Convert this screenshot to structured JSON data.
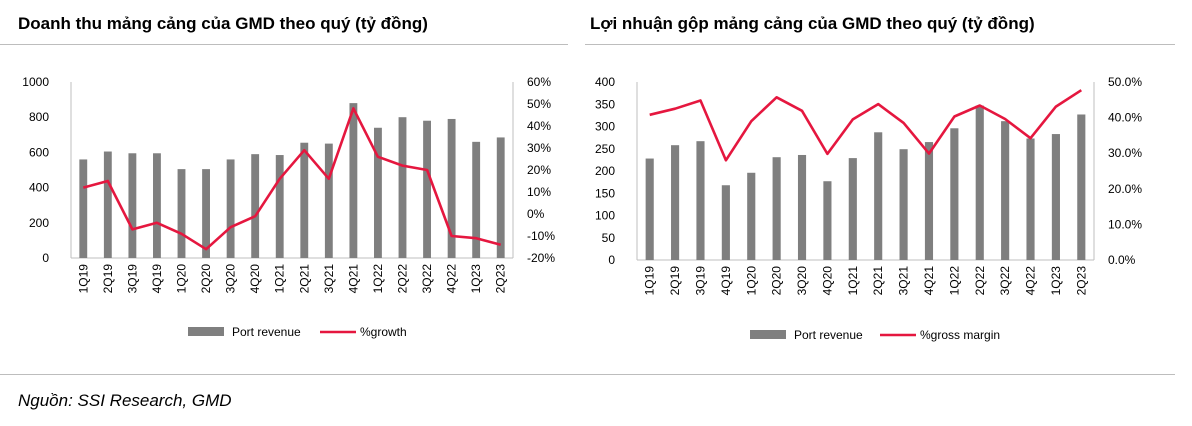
{
  "colors": {
    "bar": "#7f7f7f",
    "line": "#e5173f",
    "axis": "#bfbfbf"
  },
  "source": "Nguồn: SSI Research, GMD",
  "chart_data": [
    {
      "type": "bar",
      "title": "Doanh thu mảng cảng của GMD theo quý (tỷ đồng)",
      "categories": [
        "1Q19",
        "2Q19",
        "3Q19",
        "4Q19",
        "1Q20",
        "2Q20",
        "3Q20",
        "4Q20",
        "1Q21",
        "2Q21",
        "3Q21",
        "4Q21",
        "1Q22",
        "2Q22",
        "3Q22",
        "4Q22",
        "1Q23",
        "2Q23"
      ],
      "series": [
        {
          "name": "Port revenue",
          "type": "bar",
          "axis": "left",
          "values": [
            560,
            605,
            595,
            595,
            505,
            505,
            560,
            590,
            585,
            655,
            650,
            880,
            740,
            800,
            780,
            790,
            660,
            685
          ]
        },
        {
          "name": "%growth",
          "type": "line",
          "axis": "right",
          "values": [
            12,
            15,
            -7,
            -4,
            -9,
            -16,
            -6,
            -1,
            16,
            29,
            16,
            48,
            26,
            22,
            20,
            -10,
            -11,
            -14
          ]
        }
      ],
      "y_left": {
        "min": 0,
        "max": 1000,
        "step": 200
      },
      "y_right": {
        "min": -20,
        "max": 60,
        "step": 10,
        "format": "percent0"
      },
      "legend": "bottom"
    },
    {
      "type": "bar",
      "title": "Lợi nhuận gộp mảng cảng của GMD theo quý (tỷ đồng)",
      "categories": [
        "1Q19",
        "2Q19",
        "3Q19",
        "4Q19",
        "1Q20",
        "2Q20",
        "3Q20",
        "4Q20",
        "1Q21",
        "2Q21",
        "3Q21",
        "4Q21",
        "1Q22",
        "2Q22",
        "3Q22",
        "4Q22",
        "1Q23",
        "2Q23"
      ],
      "series": [
        {
          "name": "Port revenue",
          "type": "bar",
          "axis": "left",
          "values": [
            228,
            258,
            267,
            168,
            196,
            231,
            236,
            177,
            229,
            287,
            249,
            265,
            296,
            347,
            312,
            273,
            283,
            327
          ]
        },
        {
          "name": "%gross margin",
          "type": "line",
          "axis": "right",
          "values": [
            40.8,
            42.5,
            44.8,
            28.0,
            39.0,
            45.7,
            41.9,
            29.8,
            39.5,
            43.8,
            38.5,
            29.9,
            40.3,
            43.4,
            39.6,
            34.2,
            43.1,
            47.7
          ]
        }
      ],
      "y_left": {
        "min": 0,
        "max": 400,
        "step": 50
      },
      "y_right": {
        "min": 0,
        "max": 50,
        "step": 10,
        "format": "percent1"
      },
      "legend": "bottom"
    }
  ]
}
